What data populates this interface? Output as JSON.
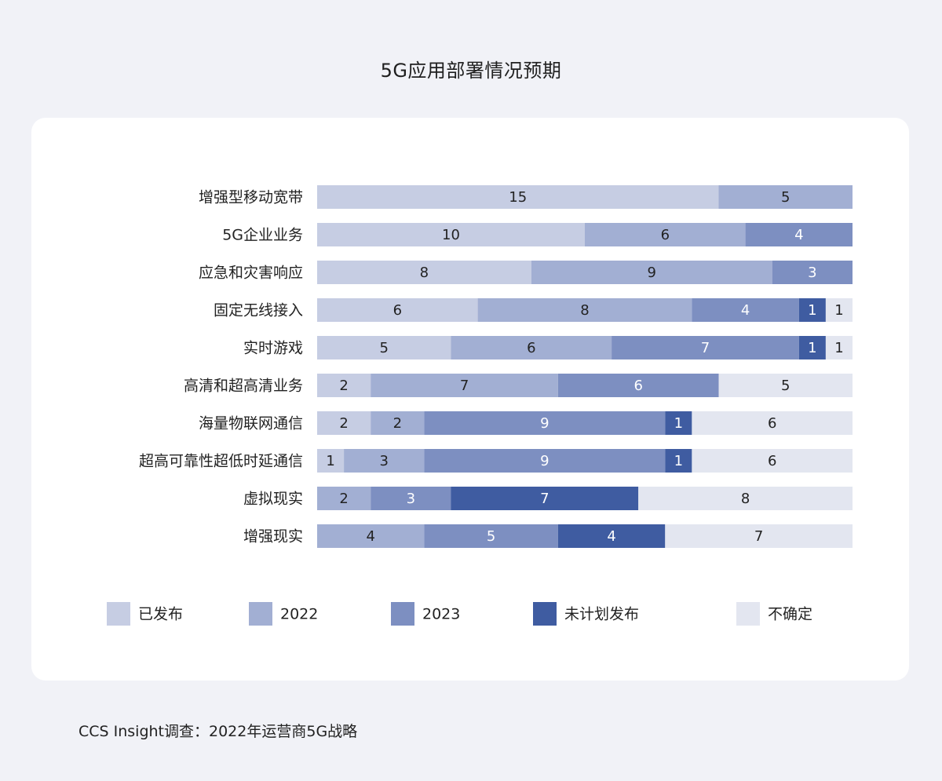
{
  "title": "5G应用部署情况预期",
  "source": "CCS Insight调查：2022年运营商5G战略",
  "chart_data": {
    "type": "bar",
    "orientation": "horizontal",
    "stacked": true,
    "title": "5G应用部署情况预期",
    "xlim": [
      0,
      20
    ],
    "grid": false,
    "legend_position": "bottom",
    "categories": [
      "增强型移动宽带",
      "5G企业业务",
      "应急和灾害响应",
      "固定无线接入",
      "实时游戏",
      "高清和超高清业务",
      "海量物联网通信",
      "超高可靠性超低时延通信",
      "虚拟现实",
      "增强现实"
    ],
    "series": [
      {
        "name": "已发布",
        "color": "#c6cde3",
        "label_color": "#222222",
        "values": [
          15,
          10,
          8,
          6,
          5,
          2,
          2,
          1,
          0,
          0
        ]
      },
      {
        "name": "2022",
        "color": "#a2afd3",
        "label_color": "#222222",
        "values": [
          5,
          6,
          9,
          8,
          6,
          7,
          2,
          3,
          2,
          4
        ]
      },
      {
        "name": "2023",
        "color": "#7d8fc1",
        "label_color": "#ffffff",
        "values": [
          0,
          4,
          3,
          4,
          7,
          6,
          9,
          9,
          3,
          5
        ]
      },
      {
        "name": "未计划发布",
        "color": "#3f5ca1",
        "label_color": "#ffffff",
        "values": [
          0,
          0,
          0,
          1,
          1,
          0,
          1,
          1,
          7,
          4
        ]
      },
      {
        "name": "不确定",
        "color": "#e3e6f0",
        "label_color": "#222222",
        "values": [
          0,
          0,
          0,
          1,
          1,
          5,
          6,
          6,
          8,
          7
        ]
      }
    ]
  }
}
